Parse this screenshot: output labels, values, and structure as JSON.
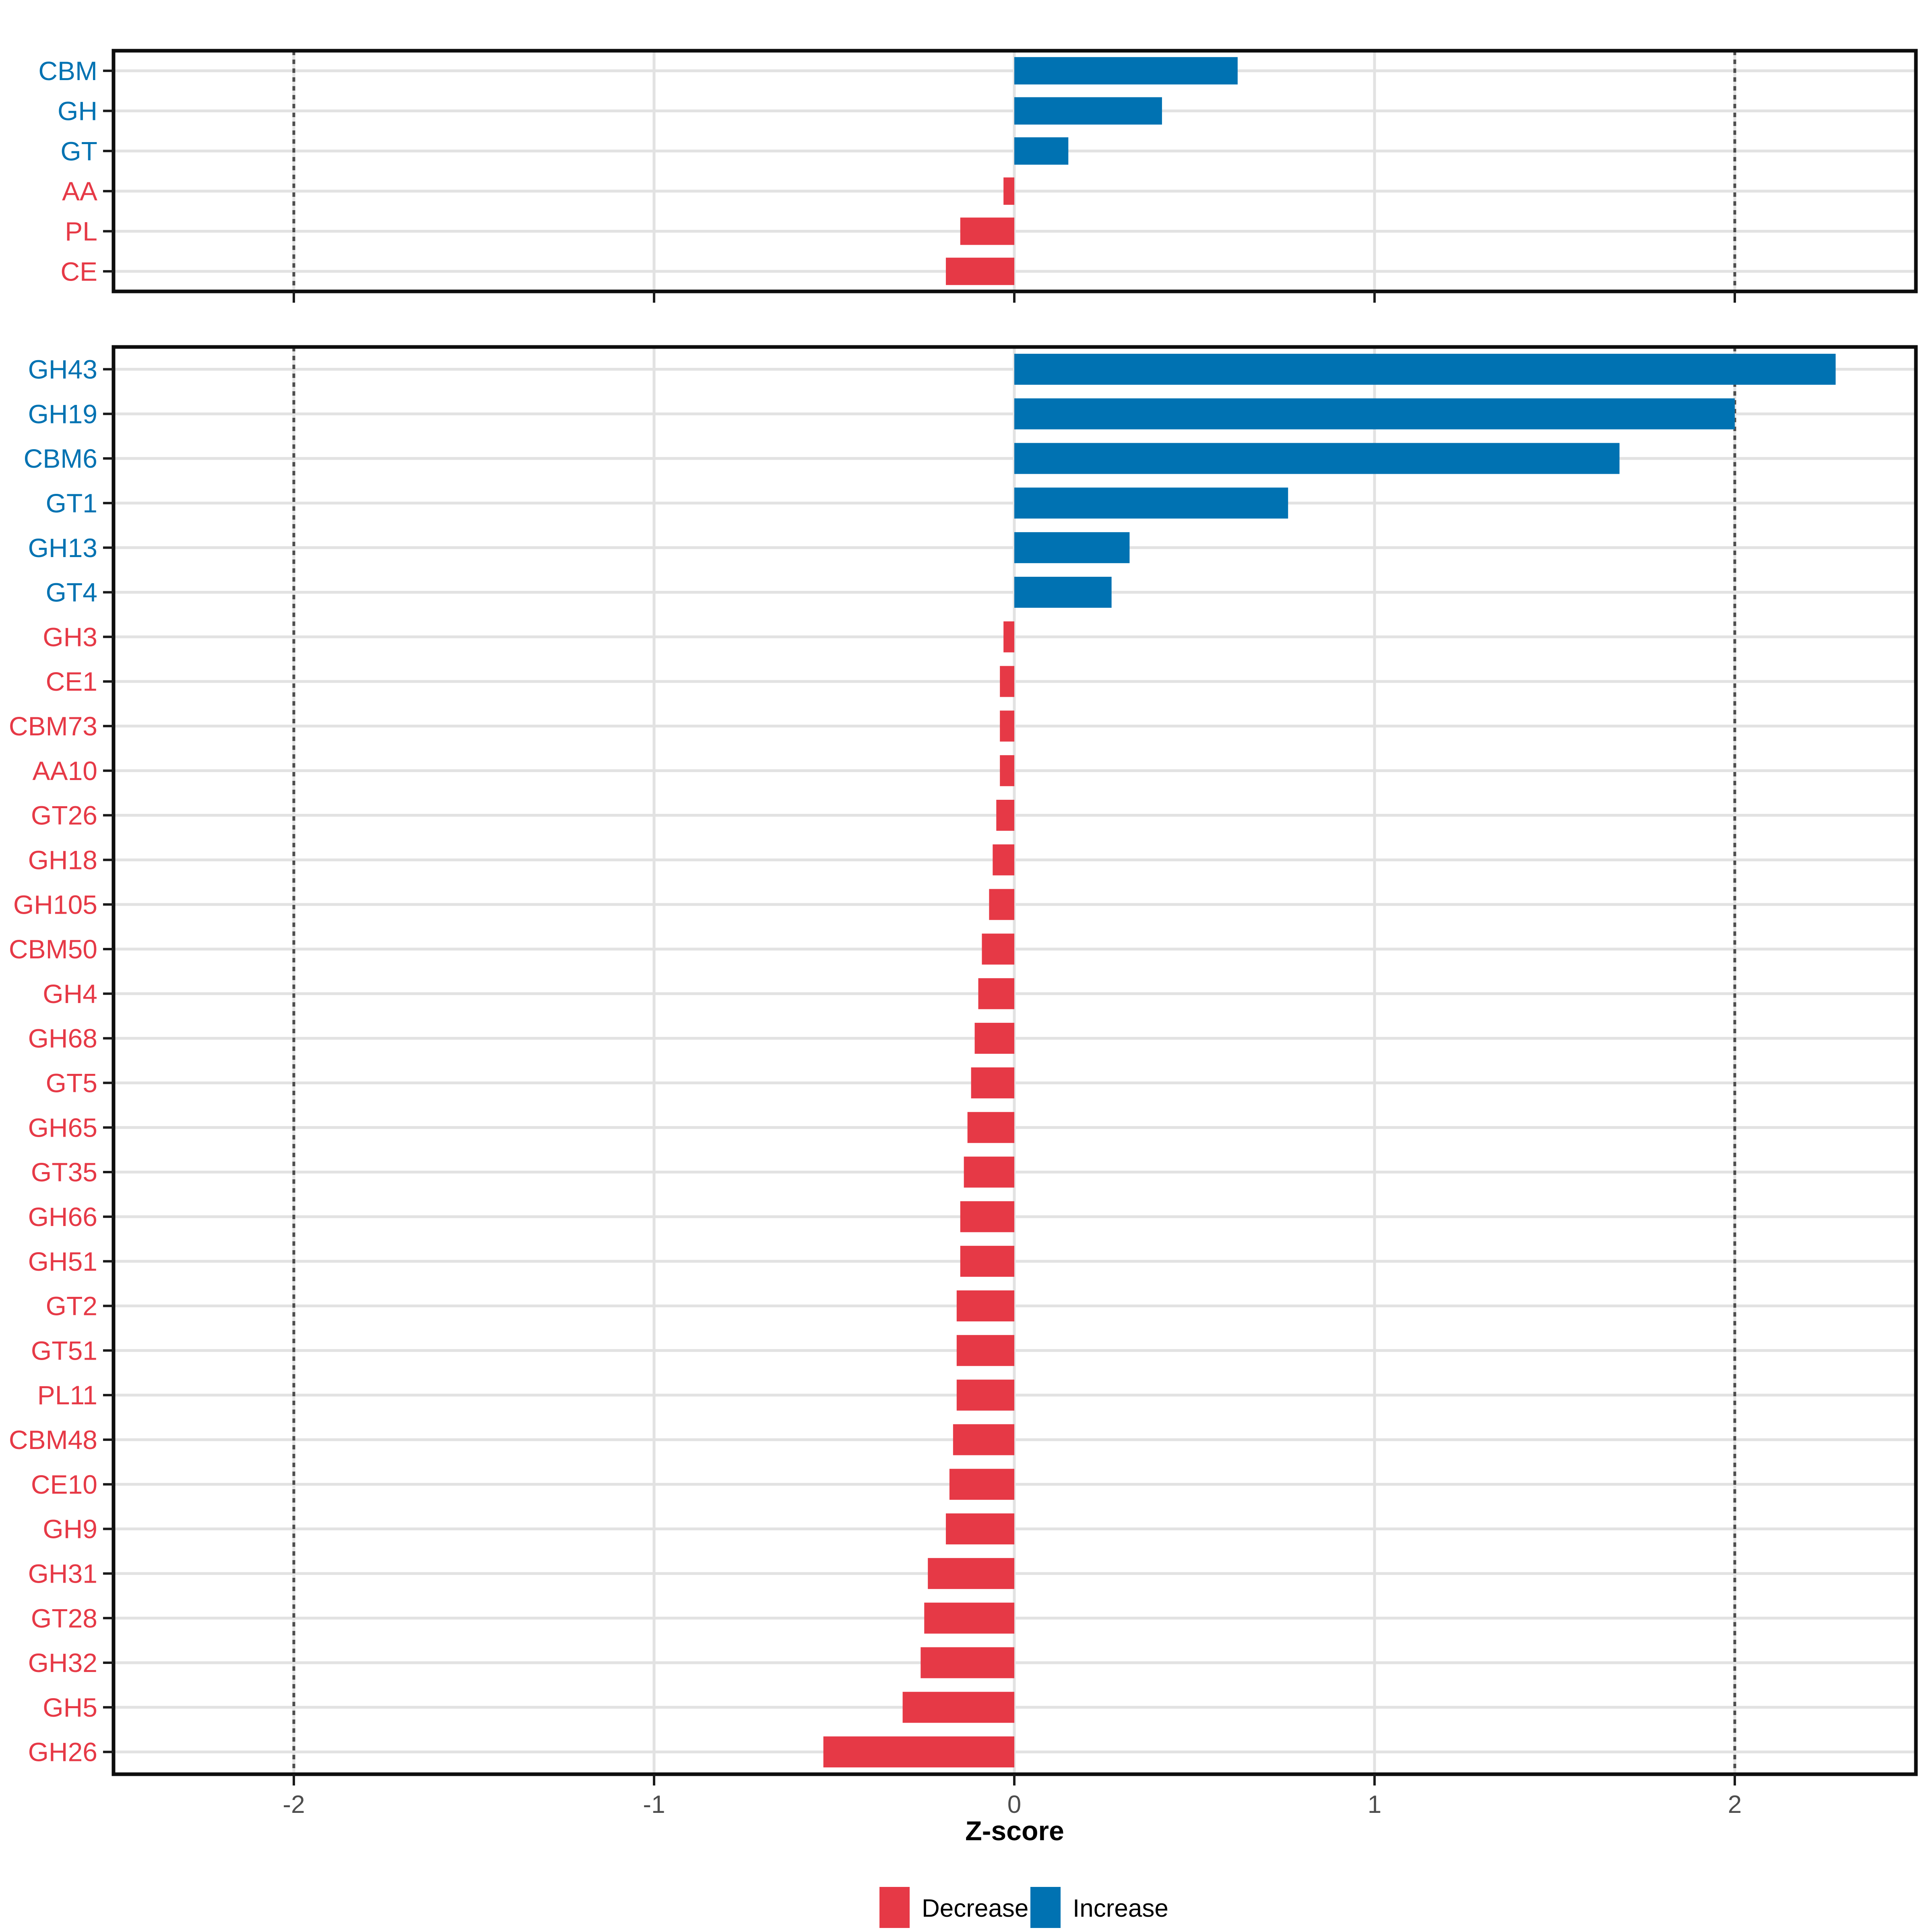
{
  "figure": {
    "xlabel": "Z-score",
    "x_axis": {
      "ticks": [
        {
          "value": -2,
          "label": "-2"
        },
        {
          "value": -1,
          "label": "-1"
        },
        {
          "value": 0,
          "label": "0"
        },
        {
          "value": 1,
          "label": "1"
        },
        {
          "value": 2,
          "label": "2"
        }
      ],
      "domain": [
        -2.5,
        2.5
      ],
      "reference_lines": [
        -2,
        2
      ]
    },
    "colors": {
      "increase": "#0072B2",
      "decrease": "#E63946",
      "grid": "#E2E2E2",
      "panel_border": "#0D0D0D",
      "tick_text": "#4D4D4D",
      "reference_line": "#4D4D4D",
      "background": "#FFFFFF"
    },
    "legend": {
      "position": "bottom",
      "items": [
        {
          "label": "Decrease",
          "color_key": "decrease"
        },
        {
          "label": "Increase",
          "color_key": "increase"
        }
      ]
    }
  },
  "chart_data": [
    {
      "panel": "class-summary",
      "type": "bar",
      "orientation": "horizontal",
      "grid": "on",
      "categories": [
        "CBM",
        "GH",
        "GT",
        "AA",
        "PL",
        "CE"
      ],
      "values": [
        0.62,
        0.41,
        0.15,
        -0.03,
        -0.15,
        -0.19
      ],
      "groups": [
        "Increase",
        "Increase",
        "Increase",
        "Decrease",
        "Decrease",
        "Decrease"
      ]
    },
    {
      "panel": "family-detail",
      "type": "bar",
      "orientation": "horizontal",
      "grid": "on",
      "categories": [
        "GH43",
        "GH19",
        "CBM6",
        "GT1",
        "GH13",
        "GT4",
        "GH3",
        "CE1",
        "CBM73",
        "AA10",
        "GT26",
        "GH18",
        "GH105",
        "CBM50",
        "GH4",
        "GH68",
        "GT5",
        "GH65",
        "GT35",
        "GH66",
        "GH51",
        "GT2",
        "GT51",
        "PL11",
        "CBM48",
        "CE10",
        "GH9",
        "GH31",
        "GT28",
        "GH32",
        "GH5",
        "GH26"
      ],
      "values": [
        2.28,
        2.0,
        1.68,
        0.76,
        0.32,
        0.27,
        -0.03,
        -0.04,
        -0.04,
        -0.04,
        -0.05,
        -0.06,
        -0.07,
        -0.09,
        -0.1,
        -0.11,
        -0.12,
        -0.13,
        -0.14,
        -0.15,
        -0.15,
        -0.16,
        -0.16,
        -0.16,
        -0.17,
        -0.18,
        -0.19,
        -0.24,
        -0.25,
        -0.26,
        -0.31,
        -0.53
      ],
      "groups": [
        "Increase",
        "Increase",
        "Increase",
        "Increase",
        "Increase",
        "Increase",
        "Decrease",
        "Decrease",
        "Decrease",
        "Decrease",
        "Decrease",
        "Decrease",
        "Decrease",
        "Decrease",
        "Decrease",
        "Decrease",
        "Decrease",
        "Decrease",
        "Decrease",
        "Decrease",
        "Decrease",
        "Decrease",
        "Decrease",
        "Decrease",
        "Decrease",
        "Decrease",
        "Decrease",
        "Decrease",
        "Decrease",
        "Decrease",
        "Decrease",
        "Decrease"
      ]
    }
  ]
}
